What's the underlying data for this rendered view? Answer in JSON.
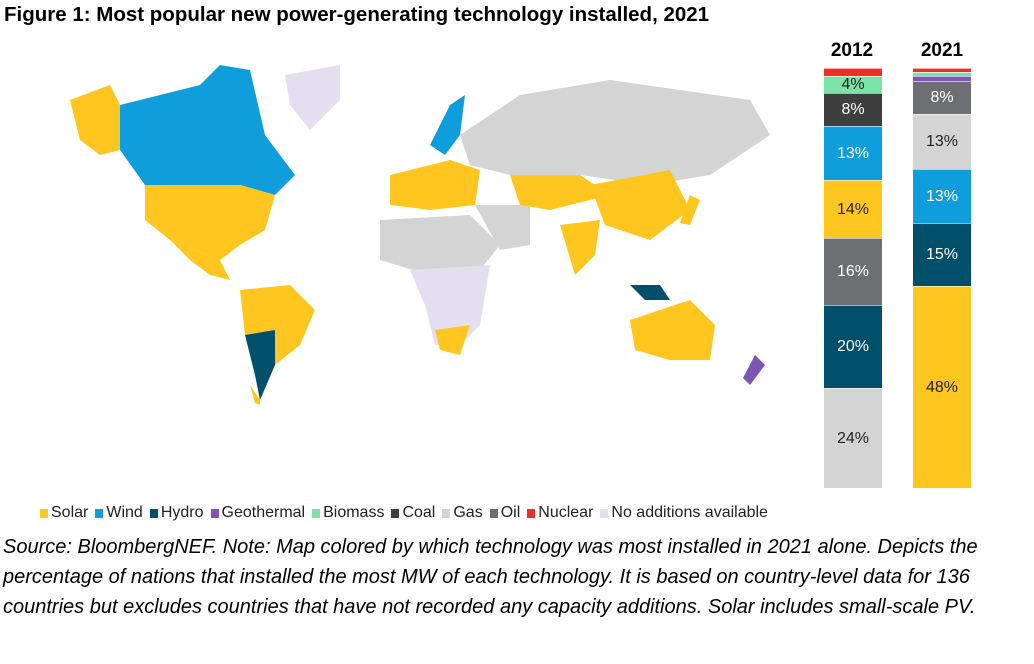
{
  "title": "Figure 1: Most popular new power-generating technology installed, 2021",
  "colors": {
    "Solar": "#fec61f",
    "Wind": "#0f9ddb",
    "Hydro": "#00506b",
    "Geothermal": "#7d56b5",
    "Biomass": "#7be3a6",
    "Coal": "#3e3e3e",
    "Gas": "#d4d4d4",
    "Oil": "#6c6e72",
    "Nuclear": "#ef2f27",
    "No additions available": "#e3dff0"
  },
  "legend": [
    "Solar",
    "Wind",
    "Hydro",
    "Geothermal",
    "Biomass",
    "Coal",
    "Gas",
    "Oil",
    "Nuclear",
    "No additions available"
  ],
  "chart_data": {
    "type": "bar",
    "stacked": true,
    "unit": "%",
    "categories": [
      "2012",
      "2021"
    ],
    "series": [
      {
        "name": "Gas",
        "values": [
          24,
          13
        ]
      },
      {
        "name": "Hydro",
        "values": [
          20,
          15
        ]
      },
      {
        "name": "Oil",
        "values": [
          16,
          8
        ]
      },
      {
        "name": "Solar",
        "values": [
          14,
          48
        ]
      },
      {
        "name": "Wind",
        "values": [
          13,
          13
        ]
      },
      {
        "name": "Coal",
        "values": [
          8,
          0
        ]
      },
      {
        "name": "Geothermal",
        "values": [
          0,
          1
        ]
      },
      {
        "name": "Biomass",
        "values": [
          4,
          1
        ]
      },
      {
        "name": "Nuclear",
        "values": [
          2,
          1
        ]
      }
    ],
    "order": {
      "2012": [
        "Gas",
        "Hydro",
        "Oil",
        "Solar",
        "Wind",
        "Coal",
        "Biomass",
        "Nuclear"
      ],
      "2021": [
        "Solar",
        "Hydro",
        "Wind",
        "Gas",
        "Oil",
        "Geothermal",
        "Biomass",
        "Nuclear"
      ]
    }
  },
  "source": "Source: BloombergNEF. Note: Map colored by which technology was most installed in 2021 alone. Depicts the percentage of nations that installed the most MW of each technology. It is based on country-level data for 136 countries but excludes countries that have not recorded any capacity additions. Solar includes small-scale PV."
}
